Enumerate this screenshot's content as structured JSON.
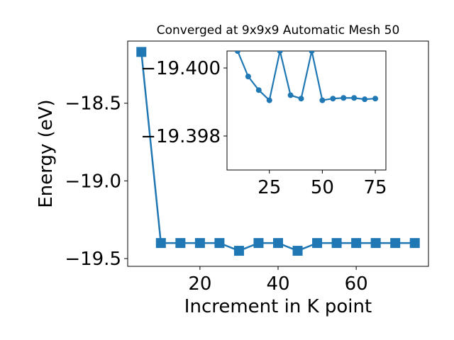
{
  "chart_data": [
    {
      "type": "line",
      "role": "main",
      "title": "Converged at 9x9x9 Automatic Mesh 50",
      "xlabel": "Increment in K point",
      "ylabel": "Energy (eV)",
      "xlim": [
        1.5,
        78.5
      ],
      "ylim": [
        -19.55,
        -18.1
      ],
      "xticks": [
        20,
        40,
        60
      ],
      "yticks": [
        -19.5,
        -19.0,
        -18.5
      ],
      "xtick_labels": [
        "20",
        "40",
        "60"
      ],
      "ytick_labels": [
        "−19.5",
        "−19.0",
        "−18.5"
      ],
      "color": "#1f77b4",
      "marker": "square",
      "x": [
        5,
        10,
        15,
        20,
        25,
        30,
        35,
        40,
        45,
        50,
        55,
        60,
        65,
        70,
        75
      ],
      "y": [
        -18.17,
        -19.4,
        -19.4,
        -19.4,
        -19.4,
        -19.45,
        -19.4,
        -19.4,
        -19.45,
        -19.4,
        -19.4,
        -19.4,
        -19.4,
        -19.4,
        -19.4
      ]
    },
    {
      "type": "line",
      "role": "inset",
      "xlim": [
        5,
        80
      ],
      "ylim": [
        -19.4005,
        -19.397
      ],
      "xticks": [
        25,
        50,
        75
      ],
      "yticks": [
        -19.4,
        -19.398
      ],
      "xtick_labels": [
        "25",
        "50",
        "75"
      ],
      "ytick_labels": [
        "−19.400",
        "−19.398"
      ],
      "color": "#1f77b4",
      "marker": "circle",
      "x": [
        10,
        15,
        20,
        25,
        30,
        35,
        40,
        45,
        50,
        55,
        60,
        65,
        70,
        75
      ],
      "y": [
        -19.4005,
        -19.39975,
        -19.39935,
        -19.39905,
        -19.4005,
        -19.3992,
        -19.3991,
        -19.4005,
        -19.39905,
        -19.3991,
        -19.39912,
        -19.39912,
        -19.39908,
        -19.3991
      ]
    }
  ]
}
